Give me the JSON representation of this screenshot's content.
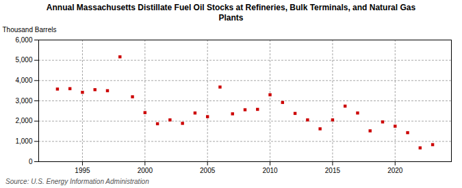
{
  "chart_data": {
    "type": "scatter",
    "title": "Annual Massachusetts Distillate Fuel Oil Stocks at Refineries, Bulk Terminals, and Natural Gas\nPlants",
    "ylabel": "Thousand Barrels",
    "source": "Source: U.S. Energy Information Administration",
    "x": [
      1993,
      1994,
      1995,
      1996,
      1997,
      1998,
      1999,
      2000,
      2001,
      2002,
      2003,
      2004,
      2005,
      2006,
      2007,
      2008,
      2009,
      2010,
      2011,
      2012,
      2013,
      2014,
      2015,
      2016,
      2017,
      2018,
      2019,
      2020,
      2021,
      2022,
      2023
    ],
    "values": [
      3580,
      3600,
      3420,
      3550,
      3500,
      5170,
      3200,
      2420,
      1870,
      2060,
      1890,
      2400,
      2220,
      3680,
      2360,
      2560,
      2580,
      3300,
      2920,
      2380,
      2060,
      1620,
      2060,
      2740,
      2400,
      1520,
      1960,
      1750,
      1430,
      680,
      840
    ],
    "color": "#cc0000",
    "marker": "square",
    "xlim": [
      1991.5,
      2024.5
    ],
    "xticks": [
      1995,
      2000,
      2005,
      2010,
      2015,
      2020
    ],
    "ylim": [
      0,
      6000
    ],
    "yticks": [
      0,
      {
        "value": 1000,
        "label": "1,000"
      },
      {
        "value": 2000,
        "label": "2,000"
      },
      {
        "value": 3000,
        "label": "3,000"
      },
      {
        "value": 4000,
        "label": "4,000"
      },
      {
        "value": 5000,
        "label": "5,000"
      },
      {
        "value": 6000,
        "label": "6,000"
      }
    ],
    "grid": true
  }
}
